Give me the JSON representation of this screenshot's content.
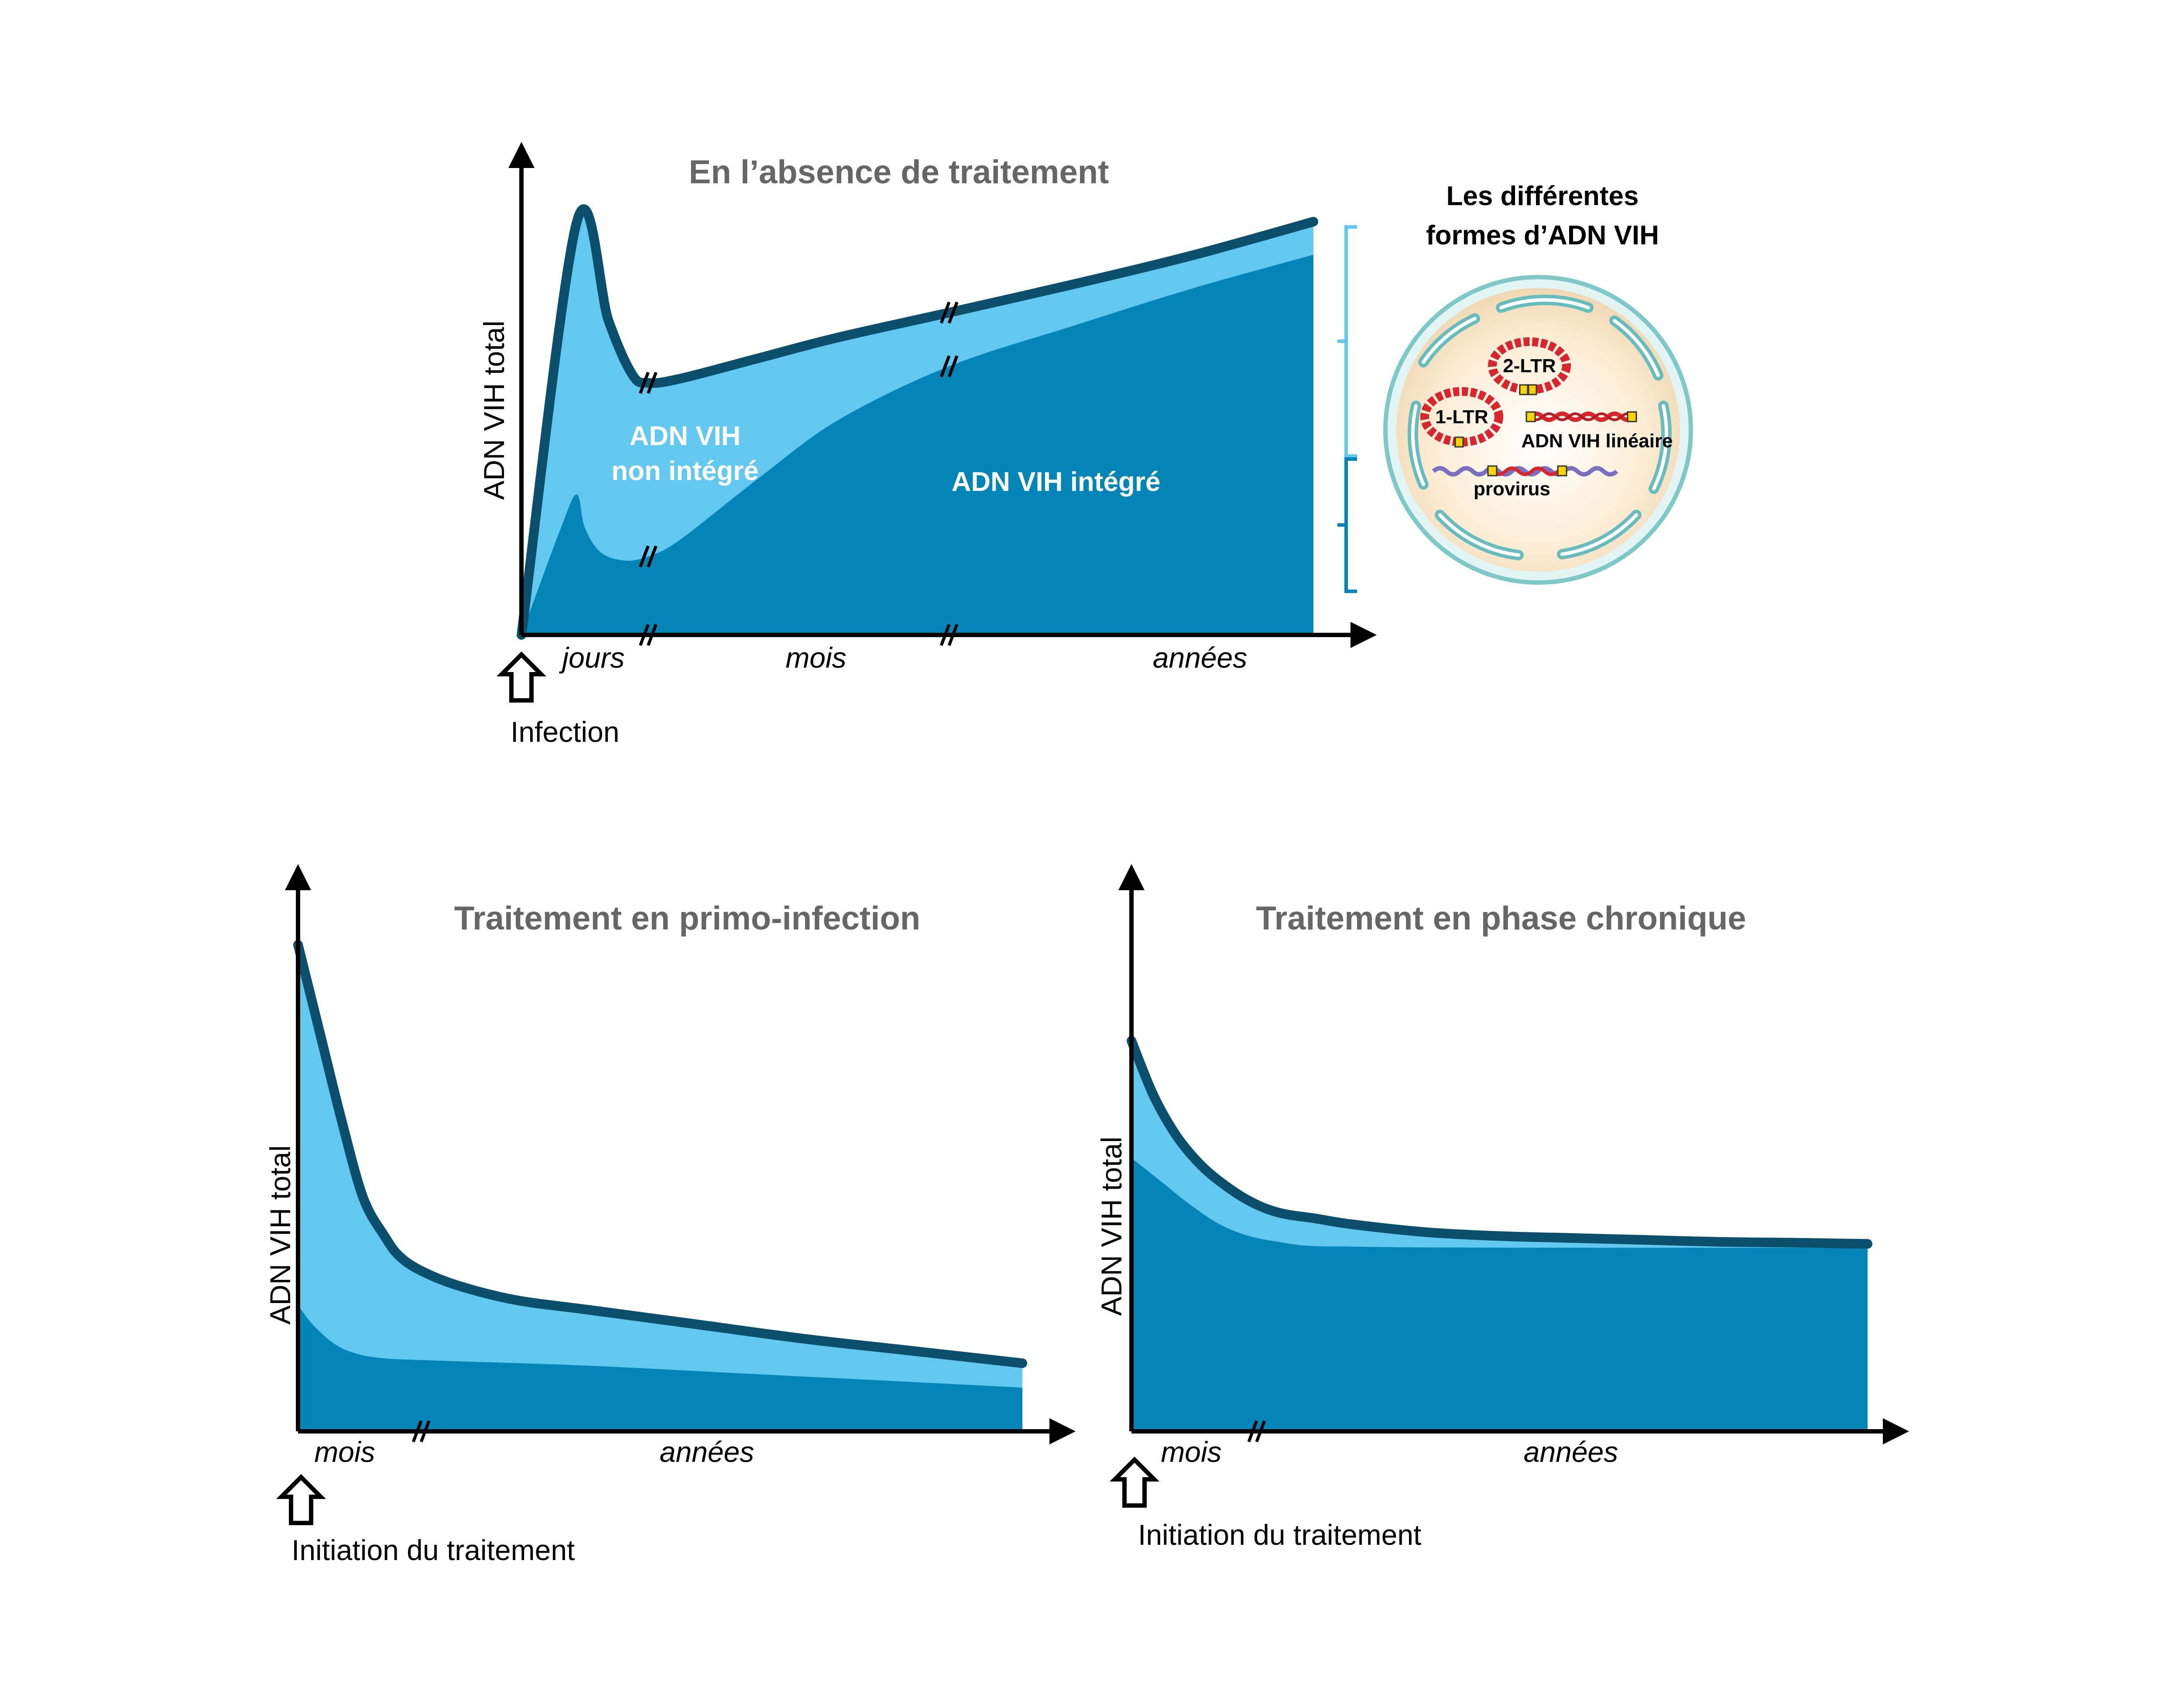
{
  "colors": {
    "integrated": "#0485b8",
    "non_integrated": "#62c8ef",
    "outline": "#0b4f6c",
    "axis": "#000000",
    "title_gray": "#666666"
  },
  "chart_data": [
    {
      "type": "area",
      "title": "En l’absence de traitement",
      "ylabel": "ADN VIH total",
      "segments": [
        "jours",
        "mois",
        "années"
      ],
      "event": "Infection",
      "area_labels": {
        "non_integrated": [
          "ADN VIH",
          "non intégré"
        ],
        "integrated": "ADN VIH intégré"
      },
      "x_domain": [
        0,
        100
      ],
      "ylim": [
        0,
        100
      ],
      "breaks_x": [
        16,
        54
      ],
      "series": [
        {
          "name": "ADN VIH total",
          "x": [
            0,
            7,
            11,
            14,
            16,
            20,
            30,
            40,
            54,
            70,
            85,
            100
          ],
          "values": [
            0,
            100,
            76,
            63,
            61,
            62,
            67,
            72,
            78,
            85,
            92,
            100
          ]
        },
        {
          "name": "ADN VIH intégré",
          "x": [
            0,
            5,
            7,
            8,
            10,
            13,
            16,
            20,
            30,
            40,
            54,
            70,
            85,
            100
          ],
          "values": [
            0,
            26,
            34,
            26,
            20,
            18,
            19,
            23,
            38,
            52,
            65,
            75,
            84,
            92
          ]
        }
      ]
    },
    {
      "type": "area",
      "title": "Traitement en primo-infection",
      "ylabel": "ADN VIH total",
      "segments": [
        "mois",
        "années"
      ],
      "event": "Initiation du traitement",
      "x_domain": [
        0,
        100
      ],
      "ylim": [
        0,
        100
      ],
      "breaks_x": [
        17
      ],
      "series": [
        {
          "name": "ADN VIH total",
          "x": [
            0,
            3,
            6,
            9,
            12,
            14,
            17,
            22,
            30,
            40,
            55,
            70,
            85,
            100
          ],
          "values": [
            100,
            82,
            64,
            48,
            40,
            36,
            33,
            30,
            27,
            25,
            22,
            19,
            16.5,
            14
          ]
        },
        {
          "name": "ADN VIH intégré",
          "x": [
            0,
            2,
            5,
            8,
            12,
            20,
            40,
            60,
            80,
            100
          ],
          "values": [
            26,
            22,
            18,
            16,
            15,
            14.5,
            13.5,
            12,
            10.5,
            9
          ]
        }
      ]
    },
    {
      "type": "area",
      "title": "Traitement en phase chronique",
      "ylabel": "ADN VIH total",
      "segments": [
        "mois",
        "années"
      ],
      "event": "Initiation du traitement",
      "x_domain": [
        0,
        100
      ],
      "ylim": [
        0,
        100
      ],
      "breaks_x": [
        17
      ],
      "series": [
        {
          "name": "ADN VIH total",
          "x": [
            0,
            3,
            6,
            9,
            12,
            16,
            20,
            25,
            30,
            40,
            50,
            60,
            70,
            80,
            90,
            100
          ],
          "values": [
            100,
            86,
            76,
            69,
            64,
            59,
            56,
            54.5,
            53,
            51,
            50,
            49.5,
            49,
            48.5,
            48.3,
            48
          ]
        },
        {
          "name": "ADN VIH intégré",
          "x": [
            0,
            4,
            8,
            12,
            16,
            20,
            24,
            30,
            40,
            60,
            80,
            100
          ],
          "values": [
            70,
            64,
            58,
            53,
            50,
            48.5,
            47.5,
            47.3,
            47.1,
            47,
            47,
            47
          ]
        }
      ]
    }
  ],
  "cell": {
    "title_lines": [
      "Les différentes",
      "formes d’ADN VIH"
    ],
    "labels": {
      "ltr2": "2-LTR",
      "ltr1": "1-LTR",
      "linear": "ADN VIH linéaire",
      "provirus": "provirus"
    }
  }
}
